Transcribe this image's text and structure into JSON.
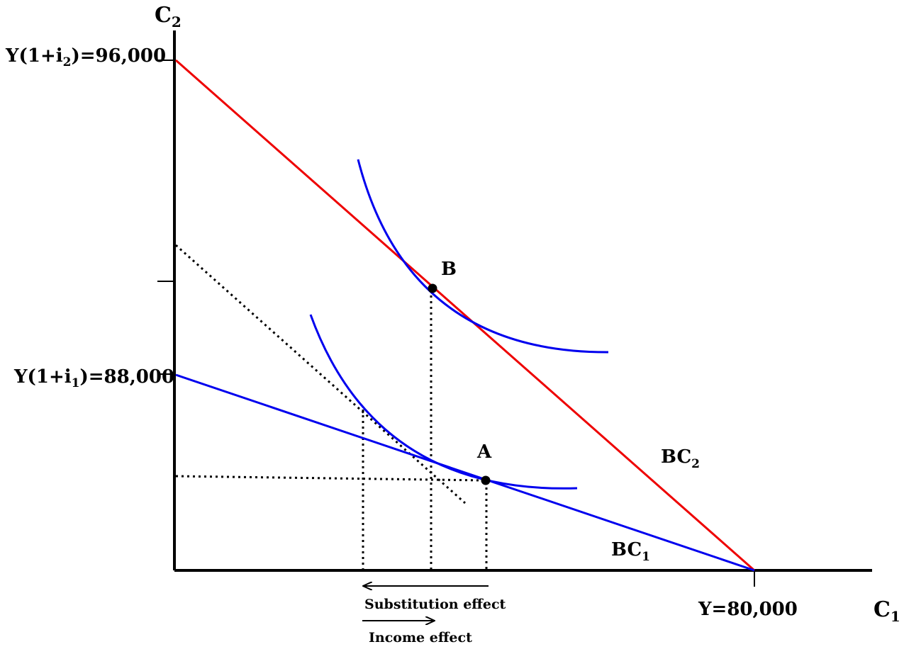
{
  "axes": {
    "y_label": "C",
    "y_label_sub": "2",
    "x_label": "C",
    "x_label_sub": "1"
  },
  "ticks": {
    "y_high_main": "Y(1+i",
    "y_high_sub": "2",
    "y_high_value": ")=96,000",
    "y_low_main": "Y(1+i",
    "y_low_sub": "1",
    "y_low_value": ")=88,000",
    "x_endowment": "Y=80,000"
  },
  "lines": {
    "bc1_main": "BC",
    "bc1_sub": "1",
    "bc2_main": "BC",
    "bc2_sub": "2",
    "bc1_color": "#0000ee",
    "bc2_color": "#ee0000",
    "indifference_color": "#0000ee"
  },
  "points": {
    "a_label": "A",
    "b_label": "B"
  },
  "effects": {
    "substitution_label": "Substitution effect",
    "income_label": "Income effect"
  }
}
